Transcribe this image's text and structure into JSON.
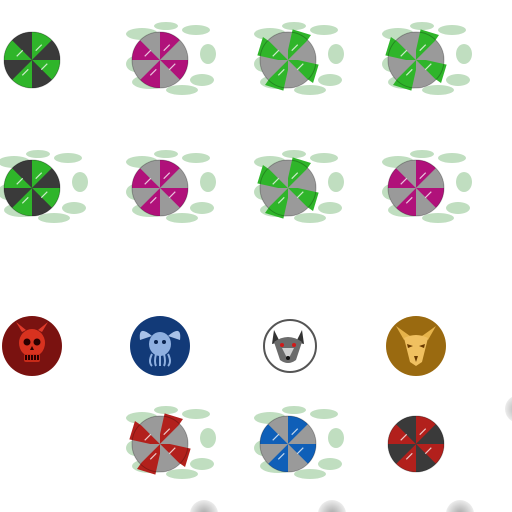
{
  "sprite_sheet": {
    "colors": {
      "green": "#2fb52a",
      "green_dark": "#1f8a1f",
      "magenta": "#b0117a",
      "red": "#b2201c",
      "red_dark": "#7a1210",
      "blue": "#0f5fb8",
      "navy": "#123a78",
      "gold": "#9a6a10",
      "steel": "#9a9a9a",
      "steel_dark": "#3a3a3a",
      "white": "#ffffff"
    },
    "rows": [
      {
        "name": "row-1",
        "cells": [
          {
            "kind": "shield",
            "style": "flat",
            "colors": [
              "green",
              "steel_dark"
            ],
            "fog": false
          },
          {
            "kind": "shield",
            "style": "flat",
            "colors": [
              "magenta",
              "steel"
            ],
            "fog": true
          },
          {
            "kind": "shield",
            "style": "pinwheel",
            "colors": [
              "green",
              "steel"
            ],
            "fog": true
          },
          {
            "kind": "shield",
            "style": "pinwheel",
            "colors": [
              "green",
              "steel"
            ],
            "fog": true
          }
        ]
      },
      {
        "name": "row-2",
        "cells": [
          {
            "kind": "shield",
            "style": "flat",
            "colors": [
              "green",
              "steel_dark"
            ],
            "fog": true
          },
          {
            "kind": "shield",
            "style": "flat",
            "colors": [
              "magenta",
              "steel"
            ],
            "fog": true
          },
          {
            "kind": "shield",
            "style": "pinwheel",
            "colors": [
              "green",
              "steel"
            ],
            "fog": true
          },
          {
            "kind": "shield",
            "style": "flat",
            "colors": [
              "magenta",
              "steel"
            ],
            "fog": true
          }
        ]
      },
      {
        "name": "row-3",
        "cells": [
          {
            "kind": "emblem",
            "emblem": "demon-skull-icon",
            "bg": "red_dark"
          },
          {
            "kind": "emblem",
            "emblem": "horned-beast-icon",
            "bg": "navy"
          },
          {
            "kind": "emblem",
            "emblem": "wolf-head-icon",
            "bg": "white"
          },
          {
            "kind": "emblem",
            "emblem": "dragon-head-icon",
            "bg": "gold"
          }
        ]
      },
      {
        "name": "row-4",
        "cells": [
          {
            "kind": "empty"
          },
          {
            "kind": "shield",
            "style": "pinwheel",
            "colors": [
              "red",
              "steel"
            ],
            "fog": true
          },
          {
            "kind": "shield",
            "style": "flat",
            "colors": [
              "blue",
              "steel"
            ],
            "fog": true
          },
          {
            "kind": "shield",
            "style": "flat",
            "colors": [
              "red",
              "steel_dark"
            ],
            "fog": false
          }
        ]
      }
    ]
  }
}
